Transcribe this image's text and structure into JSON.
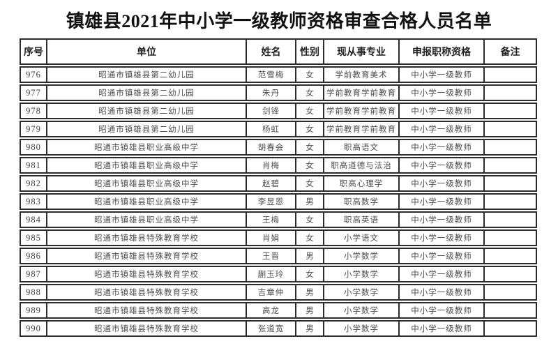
{
  "title": "镇雄县2021年中小学一级教师资格审查合格人员名单",
  "colors": {
    "background": "#ffffff",
    "border": "#2b2b2b",
    "title_text": "#111111",
    "body_text": "#4d4d4d"
  },
  "table": {
    "columns": [
      "序号",
      "单位",
      "姓名",
      "性别",
      "现从事专业",
      "申报职称资格",
      "备注"
    ],
    "rows": [
      {
        "seq": "976",
        "unit": "昭通市镇雄县第二幼儿园",
        "name": "范雪梅",
        "gender": "女",
        "major": "学前教育美术",
        "qualification": "中小学一级教师",
        "note": ""
      },
      {
        "seq": "977",
        "unit": "昭通市镇雄县第二幼儿园",
        "name": "朱丹",
        "gender": "女",
        "major": "学前教育学前教育",
        "qualification": "中小学一级教师",
        "note": ""
      },
      {
        "seq": "978",
        "unit": "昭通市镇雄县第二幼儿园",
        "name": "剑锋",
        "gender": "女",
        "major": "学前教育学前教育",
        "qualification": "中小学一级教师",
        "note": ""
      },
      {
        "seq": "979",
        "unit": "昭通市镇雄县第二幼儿园",
        "name": "杨虹",
        "gender": "女",
        "major": "学前教育学前教育",
        "qualification": "中小学一级教师",
        "note": ""
      },
      {
        "seq": "980",
        "unit": "昭通市镇雄县职业高级中学",
        "name": "胡春会",
        "gender": "女",
        "major": "职高语文",
        "qualification": "中小学一级教师",
        "note": ""
      },
      {
        "seq": "981",
        "unit": "昭通市镇雄县职业高级中学",
        "name": "肖梅",
        "gender": "女",
        "major": "职高道德与法治",
        "qualification": "中小学一级教师",
        "note": ""
      },
      {
        "seq": "982",
        "unit": "昭通市镇雄县职业高级中学",
        "name": "赵碧",
        "gender": "女",
        "major": "职高心理学",
        "qualification": "中小学一级教师",
        "note": ""
      },
      {
        "seq": "983",
        "unit": "昭通市镇雄县职业高级中学",
        "name": "李昱恩",
        "gender": "男",
        "major": "职高数学",
        "qualification": "中小学一级教师",
        "note": ""
      },
      {
        "seq": "984",
        "unit": "昭通市镇雄县职业高级中学",
        "name": "王梅",
        "gender": "女",
        "major": "职高英语",
        "qualification": "中小学一级教师",
        "note": ""
      },
      {
        "seq": "985",
        "unit": "昭通市镇雄县特殊教育学校",
        "name": "肖娟",
        "gender": "女",
        "major": "小学语文",
        "qualification": "中小学一级教师",
        "note": ""
      },
      {
        "seq": "986",
        "unit": "昭通市镇雄县特殊教育学校",
        "name": "王晋",
        "gender": "男",
        "major": "小学数学",
        "qualification": "中小学一级教师",
        "note": ""
      },
      {
        "seq": "987",
        "unit": "昭通市镇雄县特殊教育学校",
        "name": "蒯玉玲",
        "gender": "女",
        "major": "小学数学",
        "qualification": "中小学一级教师",
        "note": ""
      },
      {
        "seq": "988",
        "unit": "昭通市镇雄县特殊教育学校",
        "name": "吉章仲",
        "gender": "男",
        "major": "小学数学",
        "qualification": "中小学一级教师",
        "note": ""
      },
      {
        "seq": "989",
        "unit": "昭通市镇雄县特殊教育学校",
        "name": "高龙",
        "gender": "男",
        "major": "小学数学",
        "qualification": "中小学一级教师",
        "note": ""
      },
      {
        "seq": "990",
        "unit": "昭通市镇雄县特殊教育学校",
        "name": "张道宽",
        "gender": "男",
        "major": "小学数学",
        "qualification": "中小学一级教师",
        "note": ""
      }
    ]
  }
}
